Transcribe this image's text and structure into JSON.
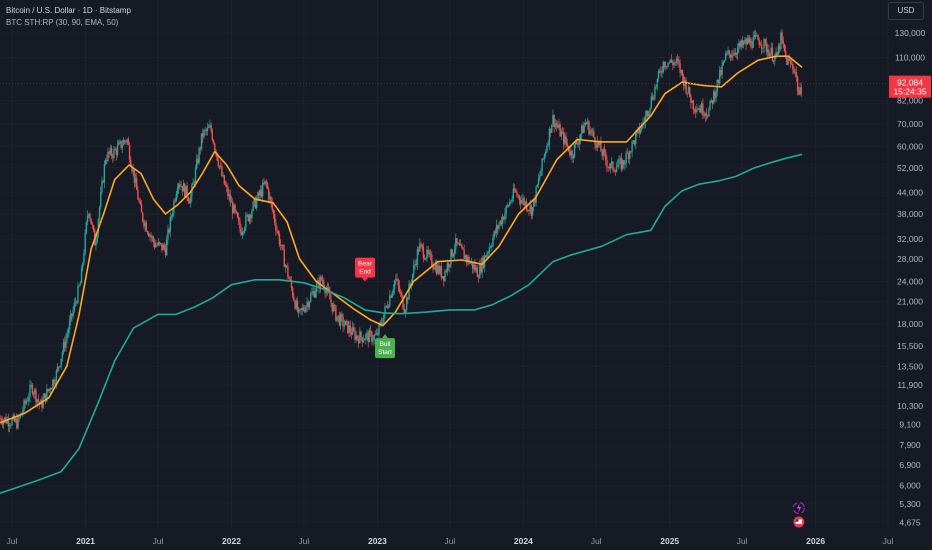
{
  "header": {
    "title": "Bitcoin / U.S. Dollar · 1D · Bitstamp",
    "indicator": "BTC STH:RP (30, 90, EMA, 50)",
    "currency_button": "USD"
  },
  "price_tag": {
    "price": "92,084",
    "countdown": "15:24:35",
    "color": "#f23645"
  },
  "colors": {
    "background": "#161a25",
    "grid": "#1e222d",
    "up_candle": "#26a69a",
    "down_candle": "#ef5350",
    "orange_line": "#ffa726",
    "teal_line": "#22ab94",
    "bear_label": "#f23645",
    "bull_label": "#4caf50"
  },
  "chart_data": {
    "type": "line",
    "scale": "log",
    "x_range": [
      "2020-06-01",
      "2026-07-01"
    ],
    "y_range": [
      4500,
      140000
    ],
    "y_ticks": [
      130000,
      110000,
      82000,
      70000,
      60000,
      52000,
      44000,
      38000,
      32000,
      28000,
      24000,
      21000,
      18000,
      15500,
      13500,
      11900,
      10300,
      9100,
      7900,
      6900,
      6000,
      5300,
      4675
    ],
    "x_ticks": [
      {
        "date": "2020-07-01",
        "label": "Jul",
        "bold": false
      },
      {
        "date": "2021-01-01",
        "label": "2021",
        "bold": true
      },
      {
        "date": "2021-07-01",
        "label": "Jul",
        "bold": false
      },
      {
        "date": "2022-01-01",
        "label": "2022",
        "bold": true
      },
      {
        "date": "2022-07-01",
        "label": "Jul",
        "bold": false
      },
      {
        "date": "2023-01-01",
        "label": "2023",
        "bold": true
      },
      {
        "date": "2023-07-01",
        "label": "Jul",
        "bold": false
      },
      {
        "date": "2024-01-01",
        "label": "2024",
        "bold": true
      },
      {
        "date": "2024-07-01",
        "label": "Jul",
        "bold": false
      },
      {
        "date": "2025-01-01",
        "label": "2025",
        "bold": true
      },
      {
        "date": "2025-07-01",
        "label": "Jul",
        "bold": false
      },
      {
        "date": "2026-01-01",
        "label": "2026",
        "bold": true
      },
      {
        "date": "2026-07-01",
        "label": "Jul",
        "bold": false
      }
    ],
    "price_series": [
      [
        "2020-06-01",
        9500
      ],
      [
        "2020-07-15",
        9200
      ],
      [
        "2020-08-20",
        11800
      ],
      [
        "2020-09-10",
        10300
      ],
      [
        "2020-10-20",
        12800
      ],
      [
        "2020-11-25",
        18500
      ],
      [
        "2020-12-20",
        24000
      ],
      [
        "2021-01-08",
        40000
      ],
      [
        "2021-01-25",
        31000
      ],
      [
        "2021-02-20",
        56000
      ],
      [
        "2021-03-15",
        58000
      ],
      [
        "2021-04-14",
        63500
      ],
      [
        "2021-05-20",
        38000
      ],
      [
        "2021-06-22",
        31000
      ],
      [
        "2021-07-20",
        30000
      ],
      [
        "2021-08-20",
        48000
      ],
      [
        "2021-09-20",
        42000
      ],
      [
        "2021-10-20",
        65000
      ],
      [
        "2021-11-10",
        68000
      ],
      [
        "2021-12-10",
        48000
      ],
      [
        "2022-01-24",
        34000
      ],
      [
        "2022-03-28",
        47000
      ],
      [
        "2022-05-12",
        28000
      ],
      [
        "2022-06-18",
        19000
      ],
      [
        "2022-08-15",
        24500
      ],
      [
        "2022-09-20",
        19000
      ],
      [
        "2022-11-10",
        16500
      ],
      [
        "2022-12-30",
        16500
      ],
      [
        "2023-02-15",
        24500
      ],
      [
        "2023-03-10",
        20000
      ],
      [
        "2023-04-15",
        30500
      ],
      [
        "2023-06-15",
        25000
      ],
      [
        "2023-07-15",
        31000
      ],
      [
        "2023-09-10",
        25500
      ],
      [
        "2023-10-25",
        34000
      ],
      [
        "2023-12-10",
        44000
      ],
      [
        "2024-01-23",
        39000
      ],
      [
        "2024-03-14",
        73000
      ],
      [
        "2024-05-01",
        57000
      ],
      [
        "2024-06-05",
        71000
      ],
      [
        "2024-08-05",
        52000
      ],
      [
        "2024-09-06",
        53500
      ],
      [
        "2024-10-30",
        72000
      ],
      [
        "2024-12-17",
        107000
      ],
      [
        "2025-01-20",
        106000
      ],
      [
        "2025-02-28",
        80000
      ],
      [
        "2025-04-08",
        76000
      ],
      [
        "2025-05-22",
        111000
      ],
      [
        "2025-07-14",
        122000
      ],
      [
        "2025-08-14",
        124000
      ],
      [
        "2025-09-25",
        109000
      ],
      [
        "2025-10-06",
        125000
      ],
      [
        "2025-10-20",
        108000
      ],
      [
        "2025-11-10",
        102000
      ],
      [
        "2025-11-21",
        84000
      ],
      [
        "2025-11-28",
        92084
      ]
    ],
    "series": [
      {
        "values": [
          [
            "2020-06-01",
            9200
          ],
          [
            "2020-08-01",
            9800
          ],
          [
            "2020-10-01",
            10900
          ],
          [
            "2020-11-15",
            13500
          ],
          [
            "2020-12-15",
            19000
          ],
          [
            "2021-01-15",
            30000
          ],
          [
            "2021-02-15",
            38000
          ],
          [
            "2021-03-15",
            48000
          ],
          [
            "2021-04-20",
            53000
          ],
          [
            "2021-05-20",
            50000
          ],
          [
            "2021-06-20",
            42000
          ],
          [
            "2021-07-20",
            38000
          ],
          [
            "2021-08-20",
            40500
          ],
          [
            "2021-09-20",
            44000
          ],
          [
            "2021-10-20",
            50000
          ],
          [
            "2021-11-20",
            58000
          ],
          [
            "2021-12-20",
            53000
          ],
          [
            "2022-01-20",
            46000
          ],
          [
            "2022-03-01",
            42000
          ],
          [
            "2022-04-15",
            41000
          ],
          [
            "2022-05-20",
            36000
          ],
          [
            "2022-06-20",
            28000
          ],
          [
            "2022-08-01",
            24000
          ],
          [
            "2022-09-15",
            22000
          ],
          [
            "2022-11-01",
            20000
          ],
          [
            "2022-12-15",
            18500
          ],
          [
            "2023-01-15",
            17800
          ],
          [
            "2023-02-15",
            19500
          ],
          [
            "2023-04-01",
            24000
          ],
          [
            "2023-06-01",
            27500
          ],
          [
            "2023-08-01",
            27800
          ],
          [
            "2023-09-20",
            27000
          ],
          [
            "2023-11-01",
            30500
          ],
          [
            "2023-12-20",
            38000
          ],
          [
            "2024-02-01",
            42500
          ],
          [
            "2024-03-25",
            55000
          ],
          [
            "2024-05-15",
            63000
          ],
          [
            "2024-07-15",
            62000
          ],
          [
            "2024-09-15",
            62000
          ],
          [
            "2024-11-15",
            74000
          ],
          [
            "2024-12-20",
            86000
          ],
          [
            "2025-02-01",
            93000
          ],
          [
            "2025-03-25",
            91000
          ],
          [
            "2025-05-10",
            90000
          ],
          [
            "2025-06-20",
            99000
          ],
          [
            "2025-08-10",
            108000
          ],
          [
            "2025-09-25",
            111000
          ],
          [
            "2025-10-25",
            111000
          ],
          [
            "2025-11-28",
            103000
          ]
        ]
      },
      {
        "values": [
          [
            "2020-06-01",
            5700
          ],
          [
            "2020-09-01",
            6200
          ],
          [
            "2020-11-01",
            6600
          ],
          [
            "2020-12-15",
            7700
          ],
          [
            "2021-02-01",
            10500
          ],
          [
            "2021-03-15",
            14000
          ],
          [
            "2021-05-01",
            17500
          ],
          [
            "2021-07-01",
            19200
          ],
          [
            "2021-08-15",
            19200
          ],
          [
            "2021-10-01",
            20200
          ],
          [
            "2021-11-15",
            21500
          ],
          [
            "2022-01-01",
            23500
          ],
          [
            "2022-03-01",
            24300
          ],
          [
            "2022-05-01",
            24300
          ],
          [
            "2022-07-01",
            23800
          ],
          [
            "2022-08-20",
            22800
          ],
          [
            "2022-10-10",
            21500
          ],
          [
            "2022-12-01",
            19800
          ],
          [
            "2023-01-15",
            19400
          ],
          [
            "2023-03-01",
            19300
          ],
          [
            "2023-05-01",
            19500
          ],
          [
            "2023-07-01",
            19800
          ],
          [
            "2023-09-01",
            19800
          ],
          [
            "2023-10-15",
            20500
          ],
          [
            "2023-12-01",
            21800
          ],
          [
            "2024-01-15",
            23500
          ],
          [
            "2024-03-15",
            27500
          ],
          [
            "2024-05-01",
            28800
          ],
          [
            "2024-07-15",
            30500
          ],
          [
            "2024-09-15",
            33000
          ],
          [
            "2024-11-15",
            34000
          ],
          [
            "2024-12-20",
            40000
          ],
          [
            "2025-02-01",
            44500
          ],
          [
            "2025-03-15",
            46500
          ],
          [
            "2025-05-01",
            47500
          ],
          [
            "2025-06-15",
            49000
          ],
          [
            "2025-08-01",
            52000
          ],
          [
            "2025-09-15",
            54000
          ],
          [
            "2025-10-20",
            55500
          ],
          [
            "2025-11-28",
            57000
          ]
        ]
      }
    ],
    "annotations": [
      {
        "text": "Bear\nEnd",
        "date": "2022-12-01",
        "price": 24000,
        "type": "bear"
      },
      {
        "text": "Bull\nStart",
        "date": "2023-01-20",
        "price": 16800,
        "type": "bull"
      }
    ],
    "grid": true,
    "price_line": 92084
  }
}
